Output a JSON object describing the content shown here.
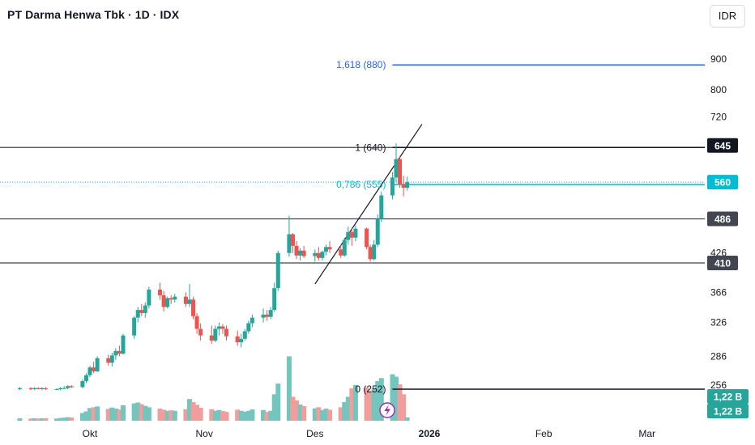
{
  "header": {
    "title": "PT Darma Henwa Tbk · 1D · IDX",
    "currency_button": "IDR"
  },
  "chart_data": {
    "type": "candlestick",
    "symbol": "PT Darma Henwa Tbk",
    "interval": "1D",
    "exchange": "IDX",
    "y_scale": "log",
    "y_ticks": [
      256,
      286,
      326,
      366,
      426,
      720,
      800,
      900
    ],
    "x_ticks": [
      {
        "label": "Okt",
        "date": "2025-10-01"
      },
      {
        "label": "Nov",
        "date": "2025-11-01"
      },
      {
        "label": "Des",
        "date": "2025-12-01"
      },
      {
        "label": "2026",
        "date": "2026-01-01",
        "bold": true
      },
      {
        "label": "Feb",
        "date": "2026-02-01"
      },
      {
        "label": "Mar",
        "date": "2026-03-01"
      }
    ],
    "price_badges": [
      {
        "label": "645",
        "value": 645,
        "color": "#131722"
      },
      {
        "label": "560",
        "value": 560,
        "color": "#00bcd4"
      },
      {
        "label": "486",
        "value": 486,
        "color": "#434651"
      },
      {
        "label": "410",
        "value": 410,
        "color": "#434651"
      }
    ],
    "volume_badges": [
      {
        "label": "1,22 B",
        "color": "#26a69a"
      },
      {
        "label": "1,22 B",
        "color": "#26a69a"
      }
    ],
    "horizontal_lines": [
      {
        "value": 640,
        "color": "#434651"
      },
      {
        "value": 486,
        "color": "#434651"
      },
      {
        "value": 410,
        "color": "#434651"
      }
    ],
    "fibonacci": [
      {
        "label": "1,618 (880)",
        "value": 880,
        "color": "#2962ff"
      },
      {
        "label": "1 (640)",
        "value": 640,
        "color": "#131722"
      },
      {
        "label": "0,786 (555)",
        "value": 555,
        "color": "#00bcd4"
      },
      {
        "label": "0 (252)",
        "value": 252,
        "color": "#131722"
      }
    ],
    "current_price_line": {
      "value": 560,
      "color": "#00bcd4"
    },
    "trendline": {
      "start": {
        "date": "2025-12-01",
        "value": 378
      },
      "end": {
        "date": "2025-12-30",
        "value": 700
      },
      "color": "#131722"
    },
    "colors": {
      "up": "#26a69a",
      "down": "#ef5350",
      "volume_up": "#72c6bd",
      "volume_down": "#f19d9b"
    },
    "candles": [
      [
        "2025-09-12",
        252,
        254,
        251,
        253,
        0.9
      ],
      [
        "2025-09-15",
        253,
        254,
        251,
        252,
        0.8
      ],
      [
        "2025-09-16",
        252,
        254,
        251,
        253,
        0.9
      ],
      [
        "2025-09-17",
        253,
        254,
        252,
        252,
        0.8
      ],
      [
        "2025-09-18",
        252,
        254,
        251,
        253,
        0.9
      ],
      [
        "2025-09-19",
        253,
        254,
        251,
        252,
        0.9
      ],
      [
        "2025-09-22",
        252,
        253,
        251,
        252,
        0.8
      ],
      [
        "2025-09-23",
        252,
        254,
        251,
        253,
        1.0
      ],
      [
        "2025-09-24",
        253,
        255,
        252,
        253,
        1.1
      ],
      [
        "2025-09-25",
        253,
        256,
        252,
        255,
        1.3
      ],
      [
        "2025-09-26",
        255,
        256,
        253,
        254,
        1.2
      ],
      [
        "2025-09-29",
        254,
        262,
        253,
        260,
        2.8
      ],
      [
        "2025-09-30",
        260,
        268,
        258,
        266,
        3.4
      ],
      [
        "2025-10-01",
        266,
        276,
        264,
        274,
        4.6
      ],
      [
        "2025-10-02",
        274,
        280,
        268,
        270,
        4.9
      ],
      [
        "2025-10-03",
        270,
        286,
        269,
        284,
        5.2
      ],
      [
        "2025-10-06",
        284,
        288,
        276,
        279,
        4.3
      ],
      [
        "2025-10-07",
        279,
        290,
        275,
        287,
        4.8
      ],
      [
        "2025-10-08",
        287,
        295,
        282,
        292,
        4.4
      ],
      [
        "2025-10-09",
        292,
        298,
        286,
        289,
        4.1
      ],
      [
        "2025-10-10",
        289,
        312,
        288,
        310,
        5.6
      ],
      [
        "2025-10-13",
        310,
        334,
        306,
        332,
        6.3
      ],
      [
        "2025-10-14",
        332,
        346,
        326,
        342,
        6.6
      ],
      [
        "2025-10-15",
        342,
        350,
        334,
        338,
        6.0
      ],
      [
        "2025-10-16",
        338,
        352,
        332,
        348,
        5.4
      ],
      [
        "2025-10-17",
        348,
        374,
        344,
        370,
        4.9
      ],
      [
        "2025-10-20",
        370,
        380,
        356,
        362,
        4.4
      ],
      [
        "2025-10-21",
        362,
        368,
        340,
        346,
        4.0
      ],
      [
        "2025-10-22",
        346,
        360,
        344,
        358,
        3.6
      ],
      [
        "2025-10-23",
        358,
        362,
        350,
        356,
        3.8
      ],
      [
        "2025-10-24",
        356,
        364,
        352,
        360,
        3.6
      ],
      [
        "2025-10-27",
        360,
        366,
        346,
        350,
        4.2
      ],
      [
        "2025-10-28",
        350,
        378,
        346,
        356,
        7.9
      ],
      [
        "2025-10-29",
        356,
        360,
        330,
        334,
        6.8
      ],
      [
        "2025-10-30",
        334,
        338,
        312,
        318,
        5.8
      ],
      [
        "2025-10-31",
        318,
        325,
        304,
        310,
        4.7
      ],
      [
        "2025-11-03",
        310,
        322,
        300,
        304,
        4.2
      ],
      [
        "2025-11-04",
        304,
        322,
        302,
        318,
        3.6
      ],
      [
        "2025-11-05",
        318,
        326,
        310,
        321,
        3.9
      ],
      [
        "2025-11-06",
        321,
        324,
        312,
        318,
        3.5
      ],
      [
        "2025-11-07",
        318,
        322,
        304,
        309,
        3.2
      ],
      [
        "2025-11-10",
        309,
        316,
        298,
        302,
        4.0
      ],
      [
        "2025-11-11",
        302,
        312,
        296,
        306,
        3.6
      ],
      [
        "2025-11-12",
        306,
        318,
        304,
        315,
        3.3
      ],
      [
        "2025-11-13",
        315,
        328,
        312,
        325,
        3.6
      ],
      [
        "2025-11-14",
        325,
        336,
        320,
        332,
        4.1
      ],
      [
        "2025-11-17",
        332,
        344,
        326,
        336,
        3.9
      ],
      [
        "2025-11-18",
        336,
        342,
        328,
        333,
        3.2
      ],
      [
        "2025-11-19",
        333,
        346,
        330,
        342,
        3.6
      ],
      [
        "2025-11-20",
        342,
        380,
        340,
        372,
        9.6
      ],
      [
        "2025-11-21",
        372,
        430,
        368,
        426,
        13.5
      ],
      [
        "2025-11-24",
        426,
        492,
        420,
        458,
        23.4
      ],
      [
        "2025-11-25",
        458,
        460,
        426,
        438,
        8.7
      ],
      [
        "2025-11-26",
        438,
        446,
        416,
        422,
        7.4
      ],
      [
        "2025-11-27",
        422,
        434,
        414,
        430,
        5.9
      ],
      [
        "2025-11-28",
        430,
        438,
        418,
        421,
        5.3
      ],
      [
        "2025-12-01",
        421,
        432,
        412,
        426,
        4.5
      ],
      [
        "2025-12-02",
        426,
        436,
        414,
        418,
        4.9
      ],
      [
        "2025-12-03",
        418,
        430,
        414,
        428,
        3.9
      ],
      [
        "2025-12-04",
        428,
        440,
        422,
        436,
        4.4
      ],
      [
        "2025-12-05",
        436,
        446,
        426,
        432,
        4.0
      ],
      [
        "2025-12-08",
        432,
        440,
        418,
        422,
        4.9
      ],
      [
        "2025-12-09",
        422,
        452,
        420,
        448,
        6.8
      ],
      [
        "2025-12-10",
        448,
        472,
        440,
        462,
        8.7
      ],
      [
        "2025-12-11",
        462,
        470,
        438,
        452,
        11.8
      ],
      [
        "2025-12-12",
        452,
        474,
        446,
        468,
        13.0
      ],
      [
        "2025-12-15",
        468,
        470,
        432,
        436,
        12.1
      ],
      [
        "2025-12-16",
        436,
        440,
        412,
        416,
        10.8
      ],
      [
        "2025-12-17",
        416,
        448,
        414,
        440,
        11.6
      ],
      [
        "2025-12-18",
        440,
        494,
        436,
        486,
        14.4
      ],
      [
        "2025-12-19",
        486,
        540,
        480,
        532,
        15.5
      ],
      [
        "2025-12-22",
        532,
        582,
        524,
        570,
        16.9
      ],
      [
        "2025-12-23",
        570,
        650,
        560,
        612,
        16.0
      ],
      [
        "2025-12-24",
        612,
        620,
        548,
        556,
        13.2
      ],
      [
        "2025-12-25",
        556,
        574,
        530,
        548,
        9.6
      ],
      [
        "2025-12-26",
        548,
        572,
        542,
        560,
        1.22
      ]
    ]
  }
}
